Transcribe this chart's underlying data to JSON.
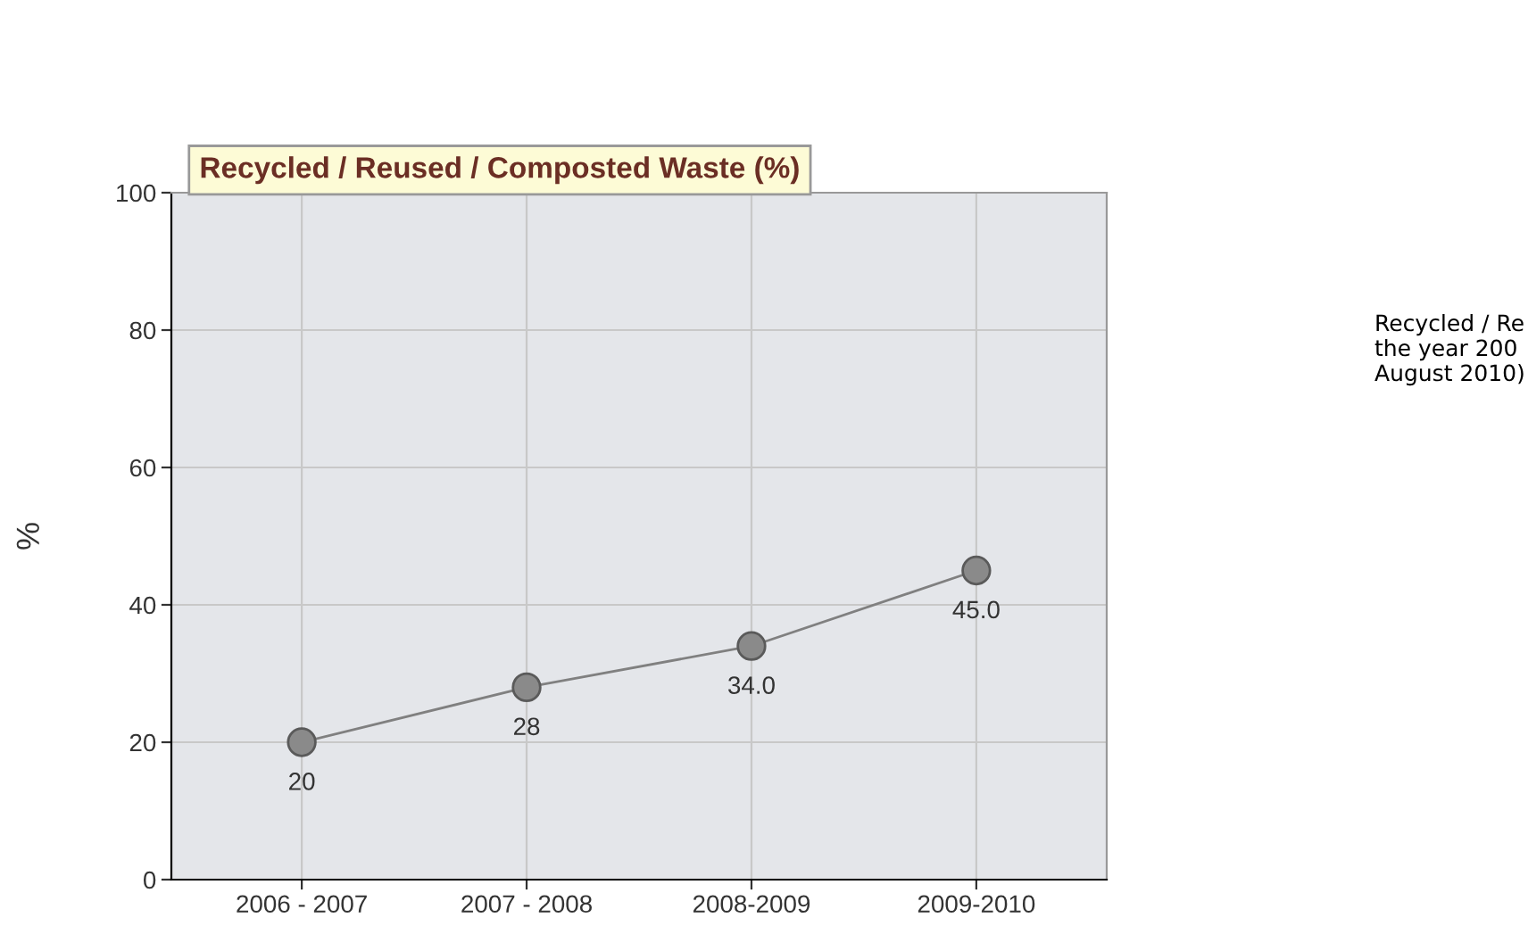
{
  "chart_data": {
    "type": "line",
    "title": "Recycled / Reused / Composted Waste (%)",
    "ylabel": "%",
    "categories": [
      "2006 - 2007",
      "2007 - 2008",
      "2008-2009",
      "2009-2010"
    ],
    "series": [
      {
        "color": "#808080",
        "values": [
          20,
          28,
          34.0,
          45.0
        ],
        "value_labels": [
          "20",
          "28",
          "34.0",
          "45.0"
        ]
      }
    ],
    "ylim": [
      0,
      100
    ],
    "yticks": [
      0,
      20,
      40,
      60,
      80,
      100
    ],
    "grid": true,
    "marker": "circle",
    "line_style": "solid",
    "legend": false,
    "annotations": [
      "Recycled / Re\nthe year 200\nAugust 2010)"
    ]
  }
}
